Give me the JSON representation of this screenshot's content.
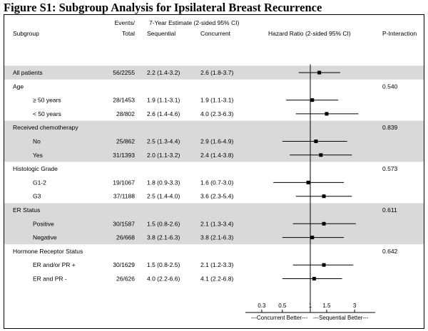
{
  "figure_title": "Figure S1: Subgroup Analysis for Ipsilateral Breast Recurrence",
  "header": {
    "subgroup": "Subgroup",
    "events_line1": "Events/",
    "events_line2": "Total",
    "estimate_title": "7-Year Estimate (2-sided 95% CI)",
    "sequential": "Sequential",
    "concurrent": "Concurrent",
    "hazard_ratio": "Hazard Ratio (2-sided 95% CI)",
    "p_interaction": "P-Interaction"
  },
  "colors": {
    "shade": "#d9d9d9",
    "line": "#000000",
    "marker": "#000000"
  },
  "chart_data": {
    "type": "forest",
    "x_scale": "log",
    "xlim": [
      0.2,
      5.0
    ],
    "x_ticks": [
      "0.3",
      "0.5",
      "1",
      "1.5",
      "3"
    ],
    "x_tick_values": [
      0.3,
      0.5,
      1,
      1.5,
      3
    ],
    "reference_line": 1,
    "direction_left": "---Concurrent Better---",
    "direction_right": "---Sequential Better---",
    "rows": [
      {
        "label": "All patients",
        "indent": false,
        "shaded": true,
        "events": "56/2255",
        "sequential": "2.2 (1.4-3.2)",
        "concurrent": "2.6 (1.8-3.7)",
        "hr": 1.25,
        "lo": 0.75,
        "hi": 2.1,
        "p": ""
      },
      {
        "label": "Age",
        "indent": false,
        "shaded": false,
        "events": "",
        "sequential": "",
        "concurrent": "",
        "hr": null,
        "lo": null,
        "hi": null,
        "p": "0.540"
      },
      {
        "label": "≥ 50 years",
        "indent": true,
        "shaded": false,
        "events": "28/1453",
        "sequential": "1.9 (1.1-3.1)",
        "concurrent": "1.9 (1.1-3.1)",
        "hr": 1.05,
        "lo": 0.55,
        "hi": 2.0,
        "p": ""
      },
      {
        "label": "< 50 years",
        "indent": true,
        "shaded": false,
        "events": "28/802",
        "sequential": "2.6 (1.4-4.6)",
        "concurrent": "4.0 (2.3-6.3)",
        "hr": 1.5,
        "lo": 0.7,
        "hi": 3.3,
        "p": ""
      },
      {
        "label": "Received chemotherapy",
        "indent": false,
        "shaded": true,
        "events": "",
        "sequential": "",
        "concurrent": "",
        "hr": null,
        "lo": null,
        "hi": null,
        "p": "0.839"
      },
      {
        "label": "No",
        "indent": true,
        "shaded": true,
        "events": "25/862",
        "sequential": "2.5 (1.3-4.4)",
        "concurrent": "2.9 (1.6-4.9)",
        "hr": 1.15,
        "lo": 0.5,
        "hi": 2.5,
        "p": ""
      },
      {
        "label": "Yes",
        "indent": true,
        "shaded": true,
        "events": "31/1393",
        "sequential": "2.0 (1.1-3.2)",
        "concurrent": "2.4 (1.4-3.8)",
        "hr": 1.3,
        "lo": 0.6,
        "hi": 2.8,
        "p": ""
      },
      {
        "label": "Histologic Grade",
        "indent": false,
        "shaded": false,
        "events": "",
        "sequential": "",
        "concurrent": "",
        "hr": null,
        "lo": null,
        "hi": null,
        "p": "0.573"
      },
      {
        "label": "G1-2",
        "indent": true,
        "shaded": false,
        "events": "19/1067",
        "sequential": "1.8 (0.9-3.3)",
        "concurrent": "1.6 (0.7-3.0)",
        "hr": 0.95,
        "lo": 0.4,
        "hi": 2.3,
        "p": ""
      },
      {
        "label": "G3",
        "indent": true,
        "shaded": false,
        "events": "37/1188",
        "sequential": "2.5 (1.4-4.0)",
        "concurrent": "3.6 (2.3-5.4)",
        "hr": 1.4,
        "lo": 0.7,
        "hi": 2.8,
        "p": ""
      },
      {
        "label": "ER Status",
        "indent": false,
        "shaded": true,
        "events": "",
        "sequential": "",
        "concurrent": "",
        "hr": null,
        "lo": null,
        "hi": null,
        "p": "0.611"
      },
      {
        "label": "Positive",
        "indent": true,
        "shaded": true,
        "events": "30/1587",
        "sequential": "1.5 (0.8-2.6)",
        "concurrent": "2.1 (1.3-3.4)",
        "hr": 1.4,
        "lo": 0.65,
        "hi": 3.1,
        "p": ""
      },
      {
        "label": "Negative",
        "indent": true,
        "shaded": true,
        "events": "26/668",
        "sequential": "3.8 (2.1-6.3)",
        "concurrent": "3.8 (2.1-6.3)",
        "hr": 1.05,
        "lo": 0.5,
        "hi": 2.3,
        "p": ""
      },
      {
        "label": "Hormone Receptor Status",
        "indent": false,
        "shaded": false,
        "events": "",
        "sequential": "",
        "concurrent": "",
        "hr": null,
        "lo": null,
        "hi": null,
        "p": "0.642"
      },
      {
        "label": "ER and/or PR +",
        "indent": true,
        "shaded": false,
        "events": "30/1629",
        "sequential": "1.5 (0.8-2.5)",
        "concurrent": "2.1 (1.2-3.3)",
        "hr": 1.4,
        "lo": 0.65,
        "hi": 2.9,
        "p": ""
      },
      {
        "label": "ER and PR -",
        "indent": true,
        "shaded": false,
        "events": "26/626",
        "sequential": "4.0 (2.2-6.6)",
        "concurrent": "4.1 (2.2-6.8)",
        "hr": 1.1,
        "lo": 0.5,
        "hi": 2.2,
        "p": ""
      }
    ]
  }
}
